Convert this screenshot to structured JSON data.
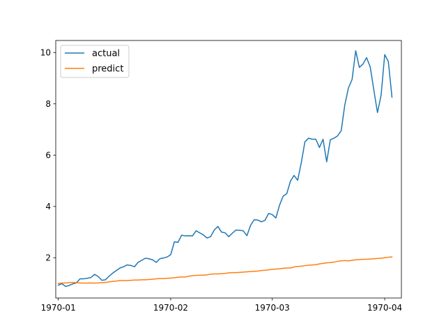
{
  "chart_data": {
    "type": "line",
    "title": "",
    "xlabel": "",
    "ylabel": "",
    "x_axis": {
      "type": "date",
      "start": "1970-01-01",
      "end": "1970-04-05",
      "ticks": [
        {
          "label": "1970-01",
          "date": "1970-01-01"
        },
        {
          "label": "1970-02",
          "date": "1970-02-01"
        },
        {
          "label": "1970-03",
          "date": "1970-03-01"
        },
        {
          "label": "1970-04",
          "date": "1970-04-01"
        }
      ]
    },
    "y_axis": {
      "ylim": [
        0.43,
        10.47
      ],
      "ticks": [
        2,
        4,
        6,
        8,
        10
      ],
      "tick_labels": [
        "2",
        "4",
        "6",
        "8",
        "10"
      ]
    },
    "grid": false,
    "legend_position": "top-left",
    "series": [
      {
        "name": "actual",
        "color": "#1f77b4",
        "points": [
          [
            "1970-01-01",
            0.93
          ],
          [
            "1970-01-02",
            0.99
          ],
          [
            "1970-01-03",
            0.88
          ],
          [
            "1970-01-04",
            0.92
          ],
          [
            "1970-01-05",
            0.98
          ],
          [
            "1970-01-06",
            1.02
          ],
          [
            "1970-01-07",
            1.18
          ],
          [
            "1970-01-08",
            1.18
          ],
          [
            "1970-01-09",
            1.2
          ],
          [
            "1970-01-10",
            1.23
          ],
          [
            "1970-01-11",
            1.35
          ],
          [
            "1970-01-12",
            1.27
          ],
          [
            "1970-01-13",
            1.12
          ],
          [
            "1970-01-14",
            1.14
          ],
          [
            "1970-01-15",
            1.28
          ],
          [
            "1970-01-16",
            1.4
          ],
          [
            "1970-01-17",
            1.5
          ],
          [
            "1970-01-18",
            1.6
          ],
          [
            "1970-01-19",
            1.65
          ],
          [
            "1970-01-20",
            1.72
          ],
          [
            "1970-01-21",
            1.7
          ],
          [
            "1970-01-22",
            1.65
          ],
          [
            "1970-01-23",
            1.82
          ],
          [
            "1970-01-24",
            1.9
          ],
          [
            "1970-01-25",
            1.98
          ],
          [
            "1970-01-26",
            1.96
          ],
          [
            "1970-01-27",
            1.92
          ],
          [
            "1970-01-28",
            1.82
          ],
          [
            "1970-01-29",
            1.96
          ],
          [
            "1970-01-30",
            1.99
          ],
          [
            "1970-01-31",
            2.03
          ],
          [
            "1970-02-01",
            2.12
          ],
          [
            "1970-02-02",
            2.62
          ],
          [
            "1970-02-03",
            2.6
          ],
          [
            "1970-02-04",
            2.88
          ],
          [
            "1970-02-05",
            2.85
          ],
          [
            "1970-02-06",
            2.86
          ],
          [
            "1970-02-07",
            2.85
          ],
          [
            "1970-02-08",
            3.05
          ],
          [
            "1970-02-09",
            2.97
          ],
          [
            "1970-02-10",
            2.89
          ],
          [
            "1970-02-11",
            2.77
          ],
          [
            "1970-02-12",
            2.82
          ],
          [
            "1970-02-13",
            3.08
          ],
          [
            "1970-02-14",
            3.22
          ],
          [
            "1970-02-15",
            3.0
          ],
          [
            "1970-02-16",
            2.97
          ],
          [
            "1970-02-17",
            2.82
          ],
          [
            "1970-02-18",
            2.96
          ],
          [
            "1970-02-19",
            3.08
          ],
          [
            "1970-02-20",
            3.07
          ],
          [
            "1970-02-21",
            3.05
          ],
          [
            "1970-02-22",
            2.86
          ],
          [
            "1970-02-23",
            3.26
          ],
          [
            "1970-02-24",
            3.48
          ],
          [
            "1970-02-25",
            3.47
          ],
          [
            "1970-02-26",
            3.4
          ],
          [
            "1970-02-27",
            3.46
          ],
          [
            "1970-02-28",
            3.73
          ],
          [
            "1970-03-01",
            3.68
          ],
          [
            "1970-03-02",
            3.55
          ],
          [
            "1970-03-03",
            4.05
          ],
          [
            "1970-03-04",
            4.4
          ],
          [
            "1970-03-05",
            4.5
          ],
          [
            "1970-03-06",
            4.98
          ],
          [
            "1970-03-07",
            5.21
          ],
          [
            "1970-03-08",
            5.02
          ],
          [
            "1970-03-09",
            5.71
          ],
          [
            "1970-03-10",
            6.52
          ],
          [
            "1970-03-11",
            6.66
          ],
          [
            "1970-03-12",
            6.62
          ],
          [
            "1970-03-13",
            6.62
          ],
          [
            "1970-03-14",
            6.3
          ],
          [
            "1970-03-15",
            6.62
          ],
          [
            "1970-03-16",
            5.74
          ],
          [
            "1970-03-17",
            6.6
          ],
          [
            "1970-03-18",
            6.66
          ],
          [
            "1970-03-19",
            6.75
          ],
          [
            "1970-03-20",
            6.95
          ],
          [
            "1970-03-21",
            7.96
          ],
          [
            "1970-03-22",
            8.62
          ],
          [
            "1970-03-23",
            8.95
          ],
          [
            "1970-03-24",
            10.07
          ],
          [
            "1970-03-25",
            9.42
          ],
          [
            "1970-03-26",
            9.55
          ],
          [
            "1970-03-27",
            9.8
          ],
          [
            "1970-03-28",
            9.44
          ],
          [
            "1970-03-29",
            8.54
          ],
          [
            "1970-03-30",
            7.66
          ],
          [
            "1970-03-31",
            8.33
          ],
          [
            "1970-04-01",
            9.92
          ],
          [
            "1970-04-02",
            9.65
          ],
          [
            "1970-04-03",
            8.26
          ]
        ]
      },
      {
        "name": "predict",
        "color": "#ff7f0e",
        "points": [
          [
            "1970-01-01",
            1.0
          ],
          [
            "1970-01-02",
            1.01
          ],
          [
            "1970-01-03",
            1.02
          ],
          [
            "1970-01-04",
            1.03
          ],
          [
            "1970-01-05",
            1.04
          ],
          [
            "1970-01-06",
            1.03
          ],
          [
            "1970-01-07",
            1.02
          ],
          [
            "1970-01-08",
            1.01
          ],
          [
            "1970-01-09",
            1.01
          ],
          [
            "1970-01-10",
            1.02
          ],
          [
            "1970-01-11",
            1.01
          ],
          [
            "1970-01-12",
            1.02
          ],
          [
            "1970-01-13",
            1.03
          ],
          [
            "1970-01-14",
            1.04
          ],
          [
            "1970-01-15",
            1.06
          ],
          [
            "1970-01-16",
            1.08
          ],
          [
            "1970-01-17",
            1.09
          ],
          [
            "1970-01-18",
            1.11
          ],
          [
            "1970-01-19",
            1.11
          ],
          [
            "1970-01-20",
            1.11
          ],
          [
            "1970-01-21",
            1.12
          ],
          [
            "1970-01-22",
            1.13
          ],
          [
            "1970-01-23",
            1.13
          ],
          [
            "1970-01-24",
            1.14
          ],
          [
            "1970-01-25",
            1.14
          ],
          [
            "1970-01-26",
            1.15
          ],
          [
            "1970-01-27",
            1.16
          ],
          [
            "1970-01-28",
            1.18
          ],
          [
            "1970-01-29",
            1.19
          ],
          [
            "1970-01-30",
            1.19
          ],
          [
            "1970-01-31",
            1.2
          ],
          [
            "1970-02-01",
            1.21
          ],
          [
            "1970-02-02",
            1.22
          ],
          [
            "1970-02-03",
            1.24
          ],
          [
            "1970-02-04",
            1.25
          ],
          [
            "1970-02-05",
            1.25
          ],
          [
            "1970-02-06",
            1.28
          ],
          [
            "1970-02-07",
            1.3
          ],
          [
            "1970-02-08",
            1.31
          ],
          [
            "1970-02-09",
            1.32
          ],
          [
            "1970-02-10",
            1.32
          ],
          [
            "1970-02-11",
            1.33
          ],
          [
            "1970-02-12",
            1.36
          ],
          [
            "1970-02-13",
            1.37
          ],
          [
            "1970-02-14",
            1.37
          ],
          [
            "1970-02-15",
            1.38
          ],
          [
            "1970-02-16",
            1.39
          ],
          [
            "1970-02-17",
            1.41
          ],
          [
            "1970-02-18",
            1.42
          ],
          [
            "1970-02-19",
            1.42
          ],
          [
            "1970-02-20",
            1.43
          ],
          [
            "1970-02-21",
            1.44
          ],
          [
            "1970-02-22",
            1.45
          ],
          [
            "1970-02-23",
            1.46
          ],
          [
            "1970-02-24",
            1.47
          ],
          [
            "1970-02-25",
            1.48
          ],
          [
            "1970-02-26",
            1.5
          ],
          [
            "1970-02-27",
            1.51
          ],
          [
            "1970-02-28",
            1.53
          ],
          [
            "1970-03-01",
            1.55
          ],
          [
            "1970-03-02",
            1.56
          ],
          [
            "1970-03-03",
            1.57
          ],
          [
            "1970-03-04",
            1.59
          ],
          [
            "1970-03-05",
            1.6
          ],
          [
            "1970-03-06",
            1.6
          ],
          [
            "1970-03-07",
            1.64
          ],
          [
            "1970-03-08",
            1.66
          ],
          [
            "1970-03-09",
            1.67
          ],
          [
            "1970-03-10",
            1.69
          ],
          [
            "1970-03-11",
            1.71
          ],
          [
            "1970-03-12",
            1.72
          ],
          [
            "1970-03-13",
            1.73
          ],
          [
            "1970-03-14",
            1.76
          ],
          [
            "1970-03-15",
            1.78
          ],
          [
            "1970-03-16",
            1.8
          ],
          [
            "1970-03-17",
            1.81
          ],
          [
            "1970-03-18",
            1.83
          ],
          [
            "1970-03-19",
            1.86
          ],
          [
            "1970-03-20",
            1.88
          ],
          [
            "1970-03-21",
            1.89
          ],
          [
            "1970-03-22",
            1.88
          ],
          [
            "1970-03-23",
            1.9
          ],
          [
            "1970-03-24",
            1.92
          ],
          [
            "1970-03-25",
            1.93
          ],
          [
            "1970-03-26",
            1.94
          ],
          [
            "1970-03-27",
            1.94
          ],
          [
            "1970-03-28",
            1.95
          ],
          [
            "1970-03-29",
            1.96
          ],
          [
            "1970-03-30",
            1.97
          ],
          [
            "1970-03-31",
            1.98
          ],
          [
            "1970-04-01",
            2.0
          ],
          [
            "1970-04-02",
            2.02
          ],
          [
            "1970-04-03",
            2.03
          ]
        ]
      }
    ]
  }
}
